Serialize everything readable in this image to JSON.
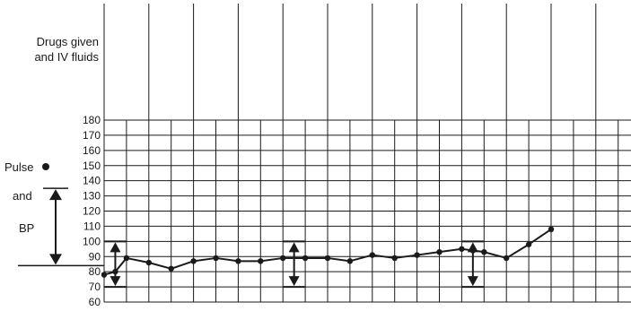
{
  "header": {
    "drugs_line1": "Drugs given",
    "drugs_line2": "and IV fluids"
  },
  "side_labels": {
    "pulse": "Pulse",
    "and": "and",
    "bp": "BP"
  },
  "chart_data": {
    "type": "line",
    "title": "",
    "xlabel": "",
    "ylabel": "",
    "ylim": [
      60,
      180
    ],
    "y_tick_step": 10,
    "y_ticks": [
      "180",
      "170",
      "160",
      "150",
      "140",
      "130",
      "120",
      "110",
      "100",
      "90",
      "80",
      "70",
      "60"
    ],
    "grid": true,
    "columns": 24,
    "pulse": {
      "marker": "dot",
      "points": [
        {
          "col": 0.0,
          "y": 78
        },
        {
          "col": 0.5,
          "y": 80
        },
        {
          "col": 1.0,
          "y": 89
        },
        {
          "col": 2.0,
          "y": 86
        },
        {
          "col": 3.0,
          "y": 82
        },
        {
          "col": 4.0,
          "y": 87
        },
        {
          "col": 5.0,
          "y": 89
        },
        {
          "col": 6.0,
          "y": 87
        },
        {
          "col": 7.0,
          "y": 87
        },
        {
          "col": 8.0,
          "y": 89
        },
        {
          "col": 9.0,
          "y": 89
        },
        {
          "col": 10.0,
          "y": 89
        },
        {
          "col": 11.0,
          "y": 87
        },
        {
          "col": 12.0,
          "y": 91
        },
        {
          "col": 13.0,
          "y": 89
        },
        {
          "col": 14.0,
          "y": 91
        },
        {
          "col": 15.0,
          "y": 93
        },
        {
          "col": 16.0,
          "y": 95
        },
        {
          "col": 16.5,
          "y": 94
        },
        {
          "col": 17.0,
          "y": 93
        },
        {
          "col": 18.0,
          "y": 89
        },
        {
          "col": 19.0,
          "y": 98
        },
        {
          "col": 20.0,
          "y": 108
        }
      ]
    },
    "bp_readings": [
      {
        "col": 0.5,
        "systolic": 100,
        "diastolic": 70
      },
      {
        "col": 8.5,
        "systolic": 100,
        "diastolic": 70
      },
      {
        "col": 16.5,
        "systolic": 100,
        "diastolic": 70
      }
    ],
    "key_arrow": {
      "top": 135,
      "bottom": 84
    }
  }
}
